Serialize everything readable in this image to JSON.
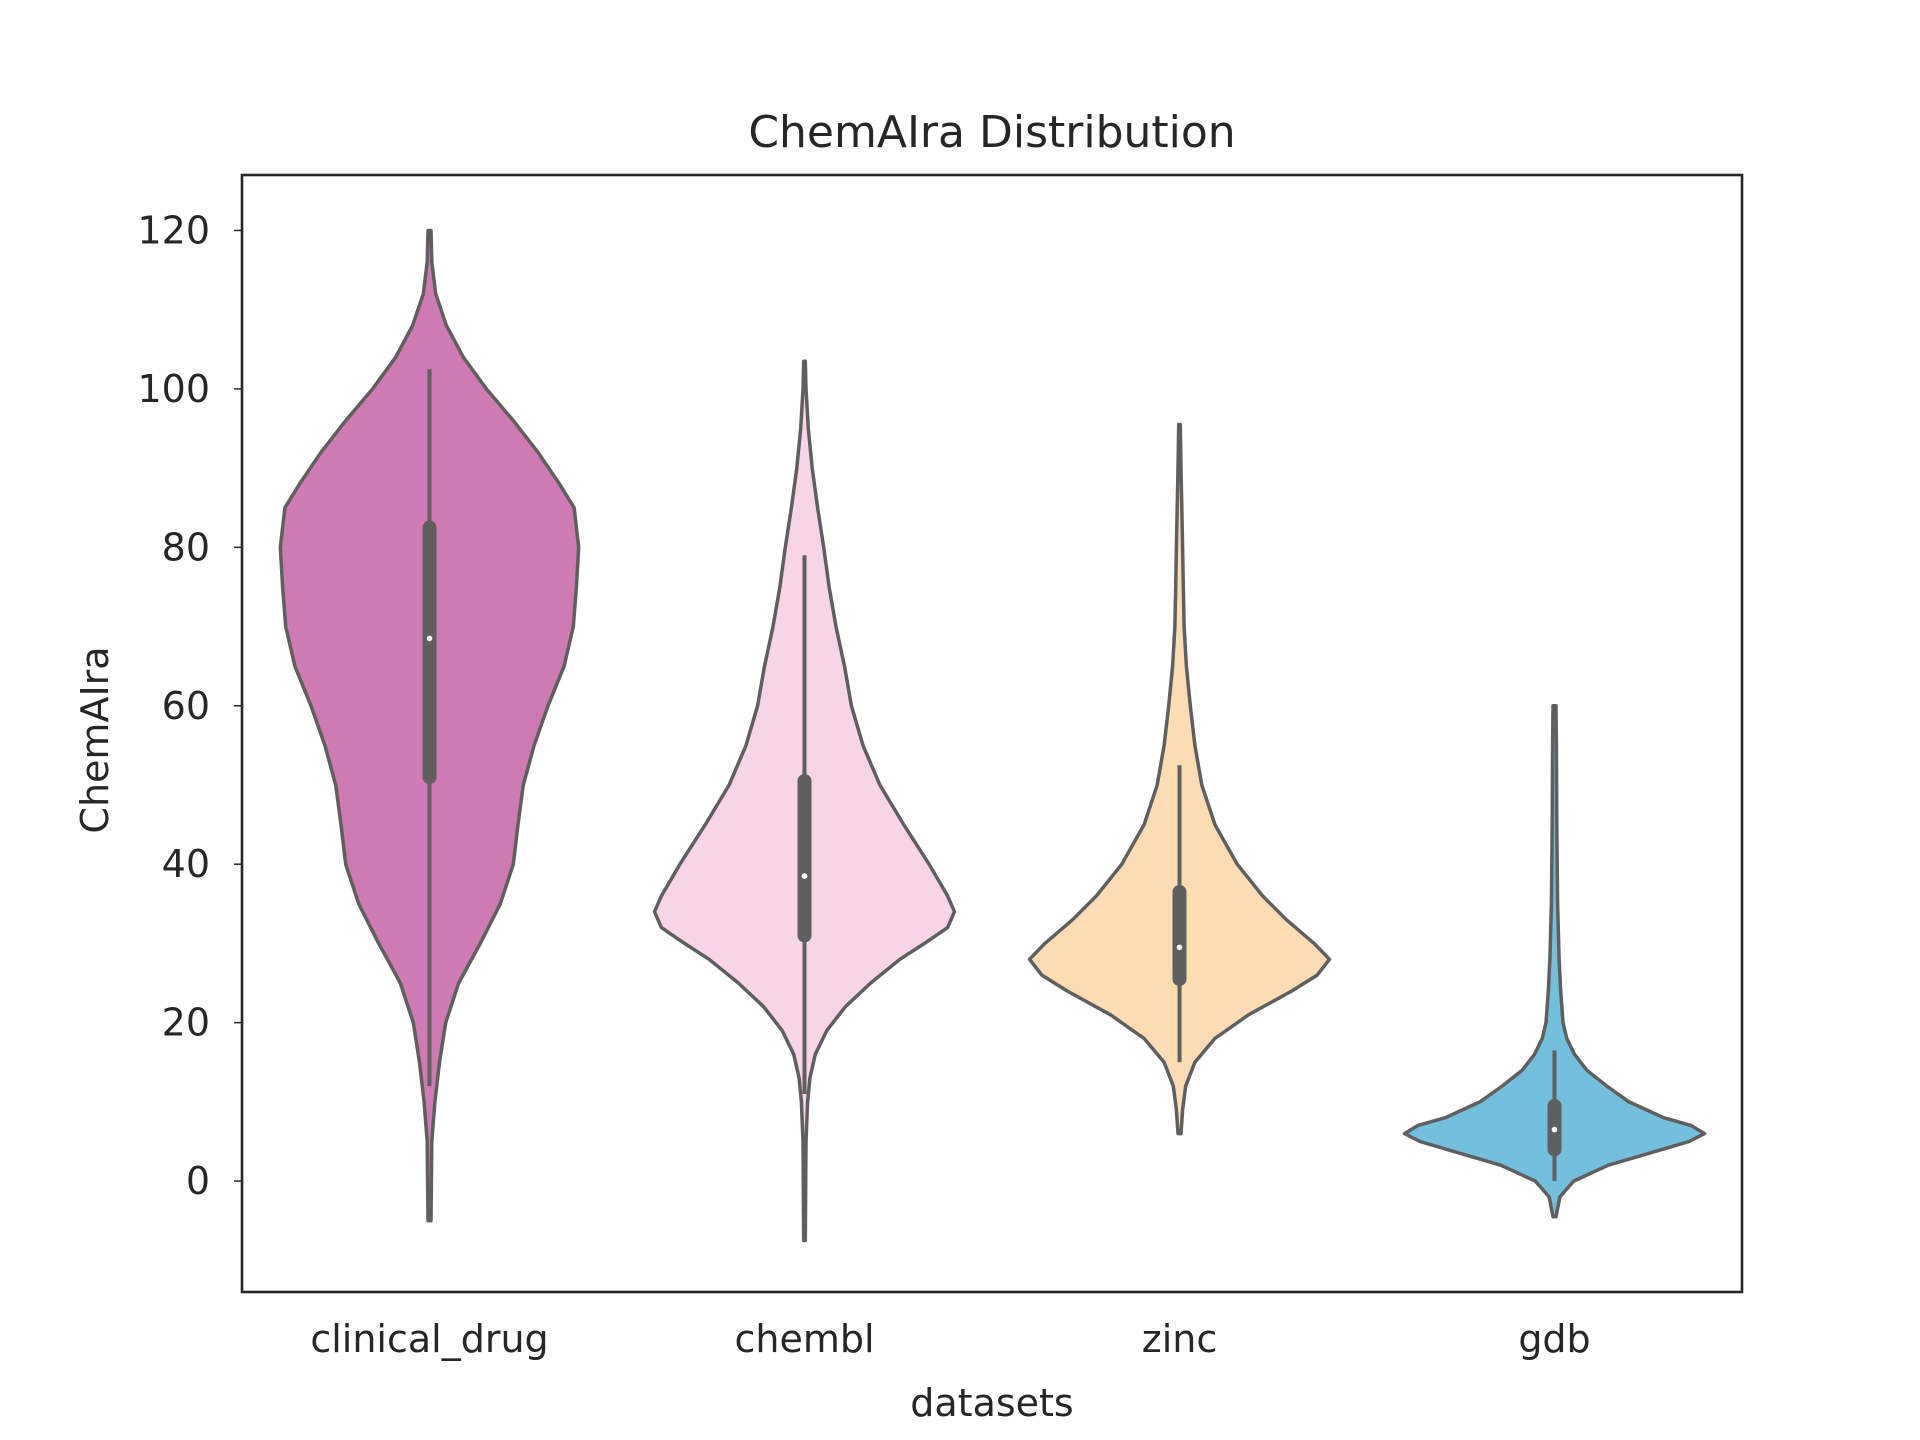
{
  "chart_data": {
    "type": "violin",
    "title": "ChemAIra Distribution",
    "xlabel": "datasets",
    "ylabel": "ChemAIra",
    "ylim": [
      -14,
      127
    ],
    "yticks": [
      0,
      20,
      40,
      60,
      80,
      100,
      120
    ],
    "grid": false,
    "legend": "none",
    "categories": [
      "clinical_drug",
      "chembl",
      "zinc",
      "gdb"
    ],
    "series": [
      {
        "category": "clinical_drug",
        "color": "#cf7ab2",
        "median": 68.5,
        "q1": 51,
        "q3": 82.5,
        "whisker_low": 12,
        "whisker_high": 102.5,
        "min": -5,
        "max": 120,
        "max_half_width": 19.5,
        "profile": [
          [
            -5,
            0.2
          ],
          [
            5,
            0.3
          ],
          [
            10,
            0.7
          ],
          [
            15,
            1.3
          ],
          [
            20,
            2.1
          ],
          [
            25,
            3.8
          ],
          [
            30,
            6.6
          ],
          [
            35,
            9.2
          ],
          [
            40,
            10.9
          ],
          [
            45,
            11.5
          ],
          [
            50,
            12.2
          ],
          [
            55,
            13.6
          ],
          [
            60,
            15.4
          ],
          [
            65,
            17.5
          ],
          [
            70,
            18.7
          ],
          [
            75,
            19.1
          ],
          [
            80,
            19.4
          ],
          [
            85,
            18.8
          ],
          [
            88,
            16.9
          ],
          [
            92,
            14.1
          ],
          [
            96,
            10.9
          ],
          [
            100,
            7.4
          ],
          [
            104,
            4.4
          ],
          [
            108,
            2.2
          ],
          [
            112,
            0.8
          ],
          [
            116,
            0.3
          ],
          [
            120,
            0.2
          ]
        ]
      },
      {
        "category": "chembl",
        "color": "#f9d4e6",
        "median": 38.5,
        "q1": 31,
        "q3": 50.5,
        "whisker_low": 11,
        "whisker_high": 79,
        "min": -7.5,
        "max": 103.5,
        "max_half_width": 19.5,
        "profile": [
          [
            -7.5,
            0.1
          ],
          [
            5,
            0.2
          ],
          [
            10,
            0.4
          ],
          [
            13,
            0.7
          ],
          [
            16,
            1.4
          ],
          [
            19,
            2.9
          ],
          [
            22,
            5.3
          ],
          [
            25,
            8.6
          ],
          [
            28,
            12.4
          ],
          [
            30,
            15.6
          ],
          [
            32,
            18.6
          ],
          [
            34,
            19.5
          ],
          [
            36,
            18.6
          ],
          [
            40,
            16.2
          ],
          [
            45,
            12.9
          ],
          [
            50,
            9.8
          ],
          [
            55,
            7.6
          ],
          [
            60,
            6.1
          ],
          [
            65,
            5.2
          ],
          [
            70,
            4.1
          ],
          [
            75,
            3.2
          ],
          [
            80,
            2.5
          ],
          [
            85,
            1.7
          ],
          [
            90,
            1.0
          ],
          [
            95,
            0.5
          ],
          [
            100,
            0.2
          ],
          [
            103.5,
            0.1
          ]
        ]
      },
      {
        "category": "zinc",
        "color": "#fddcb3",
        "median": 29.5,
        "q1": 25.5,
        "q3": 36.5,
        "whisker_low": 15,
        "whisker_high": 52.5,
        "min": 6,
        "max": 95.5,
        "max_half_width": 19.5,
        "profile": [
          [
            6,
            0.2
          ],
          [
            9,
            0.4
          ],
          [
            12,
            0.8
          ],
          [
            15,
            2.0
          ],
          [
            18,
            4.6
          ],
          [
            21,
            9.0
          ],
          [
            24,
            14.6
          ],
          [
            26,
            17.9
          ],
          [
            28,
            19.5
          ],
          [
            30,
            17.5
          ],
          [
            33,
            13.9
          ],
          [
            36,
            10.8
          ],
          [
            40,
            7.5
          ],
          [
            45,
            4.6
          ],
          [
            50,
            2.9
          ],
          [
            55,
            2.0
          ],
          [
            60,
            1.4
          ],
          [
            65,
            0.9
          ],
          [
            70,
            0.6
          ],
          [
            75,
            0.5
          ],
          [
            80,
            0.4
          ],
          [
            85,
            0.3
          ],
          [
            90,
            0.2
          ],
          [
            95.5,
            0.1
          ]
        ]
      },
      {
        "category": "gdb",
        "color": "#73bfdc",
        "median": 6.5,
        "q1": 4,
        "q3": 9.5,
        "whisker_low": 0,
        "whisker_high": 16.5,
        "min": -4.5,
        "max": 60,
        "max_half_width": 19.5,
        "profile": [
          [
            -4.5,
            0.2
          ],
          [
            -2,
            0.7
          ],
          [
            0,
            2.5
          ],
          [
            2,
            7.0
          ],
          [
            4,
            14.0
          ],
          [
            5,
            17.5
          ],
          [
            6,
            19.5
          ],
          [
            7,
            17.8
          ],
          [
            8,
            14.2
          ],
          [
            10,
            9.7
          ],
          [
            12,
            6.8
          ],
          [
            14,
            4.2
          ],
          [
            16,
            2.6
          ],
          [
            18,
            1.6
          ],
          [
            20,
            1.1
          ],
          [
            24,
            0.8
          ],
          [
            28,
            0.6
          ],
          [
            35,
            0.4
          ],
          [
            45,
            0.3
          ],
          [
            55,
            0.25
          ],
          [
            60,
            0.2
          ]
        ]
      }
    ]
  }
}
